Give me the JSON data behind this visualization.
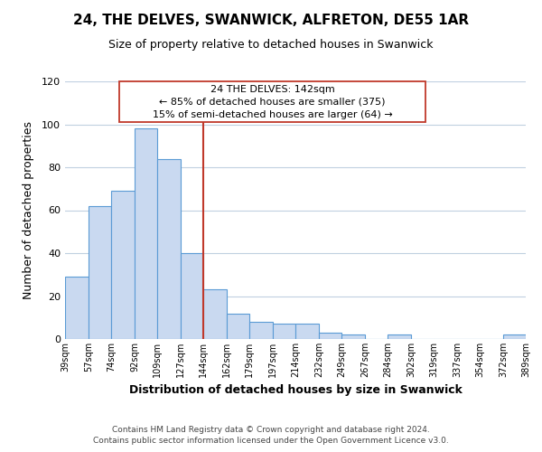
{
  "title": "24, THE DELVES, SWANWICK, ALFRETON, DE55 1AR",
  "subtitle": "Size of property relative to detached houses in Swanwick",
  "xlabel": "Distribution of detached houses by size in Swanwick",
  "ylabel": "Number of detached properties",
  "bar_edges": [
    39,
    57,
    74,
    92,
    109,
    127,
    144,
    162,
    179,
    197,
    214,
    232,
    249,
    267,
    284,
    302,
    319,
    337,
    354,
    372,
    389
  ],
  "bar_values": [
    29,
    62,
    69,
    98,
    84,
    40,
    23,
    12,
    8,
    7,
    7,
    3,
    2,
    0,
    2,
    0,
    0,
    0,
    0,
    2
  ],
  "bar_color": "#c9d9f0",
  "bar_edge_color": "#5b9bd5",
  "vline_x": 144,
  "vline_color": "#c0392b",
  "ylim": [
    0,
    120
  ],
  "yticks": [
    0,
    20,
    40,
    60,
    80,
    100,
    120
  ],
  "annotation_line1": "24 THE DELVES: 142sqm",
  "annotation_line2": "← 85% of detached houses are smaller (375)",
  "annotation_line3": "15% of semi-detached houses are larger (64) →",
  "annotation_box_color": "#c0392b",
  "footer_line1": "Contains HM Land Registry data © Crown copyright and database right 2024.",
  "footer_line2": "Contains public sector information licensed under the Open Government Licence v3.0.",
  "tick_labels": [
    "39sqm",
    "57sqm",
    "74sqm",
    "92sqm",
    "109sqm",
    "127sqm",
    "144sqm",
    "162sqm",
    "179sqm",
    "197sqm",
    "214sqm",
    "232sqm",
    "249sqm",
    "267sqm",
    "284sqm",
    "302sqm",
    "319sqm",
    "337sqm",
    "354sqm",
    "372sqm",
    "389sqm"
  ],
  "bg_color": "#ffffff",
  "grid_color": "#c0d0e0",
  "title_fontsize": 11,
  "subtitle_fontsize": 9,
  "xlabel_fontsize": 9,
  "ylabel_fontsize": 9,
  "tick_fontsize": 7,
  "footer_fontsize": 6.5,
  "ann_fontsize": 8
}
